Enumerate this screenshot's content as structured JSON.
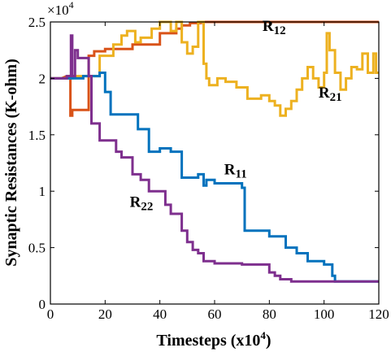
{
  "chart_data": {
    "type": "line",
    "xlabel": "Timesteps (x10",
    "xlabel_exp": "4",
    "xlabel_close": ")",
    "ylabel": "Synaptic Resistances (K-ohm)",
    "y_multiplier": "×10",
    "y_multiplier_exp": "4",
    "xlim": [
      0,
      120
    ],
    "ylim": [
      0,
      2.5
    ],
    "x_ticks": [
      "0",
      "20",
      "40",
      "60",
      "80",
      "100",
      "120"
    ],
    "y_ticks": [
      "0",
      "0.5",
      "1",
      "1.5",
      "2",
      "2.5"
    ],
    "grid": false,
    "series": [
      {
        "name": "R",
        "sub": "12",
        "color": "#d95319",
        "label_at": [
          77.5,
          2.42
        ],
        "points": [
          [
            0,
            2.0
          ],
          [
            4,
            2.0
          ],
          [
            6,
            2.02
          ],
          [
            7.3,
            2.02
          ],
          [
            7.3,
            1.67
          ],
          [
            8,
            1.67
          ],
          [
            8,
            1.72
          ],
          [
            14,
            1.72
          ],
          [
            14,
            2.2
          ],
          [
            16,
            2.2
          ],
          [
            16,
            2.24
          ],
          [
            20,
            2.24
          ],
          [
            20,
            2.26
          ],
          [
            30,
            2.26
          ],
          [
            30,
            2.3
          ],
          [
            40,
            2.3
          ],
          [
            40,
            2.4
          ],
          [
            46,
            2.4
          ],
          [
            46,
            2.44
          ],
          [
            48,
            2.44
          ],
          [
            48,
            2.47
          ],
          [
            51,
            2.47
          ],
          [
            51,
            2.49
          ],
          [
            55,
            2.49
          ],
          [
            55,
            2.5
          ],
          [
            120,
            2.5
          ]
        ]
      },
      {
        "name": "R",
        "sub": "21",
        "color": "#edb120",
        "label_at": [
          98,
          1.83
        ],
        "points": [
          [
            0,
            2.0
          ],
          [
            8,
            2.0
          ],
          [
            8,
            2.02
          ],
          [
            18,
            2.02
          ],
          [
            18,
            2.2
          ],
          [
            20,
            2.2
          ],
          [
            20,
            2.2
          ],
          [
            23,
            2.2
          ],
          [
            23,
            2.3
          ],
          [
            26,
            2.3
          ],
          [
            26,
            2.38
          ],
          [
            28,
            2.38
          ],
          [
            28,
            2.42
          ],
          [
            31,
            2.42
          ],
          [
            31,
            2.32
          ],
          [
            33,
            2.32
          ],
          [
            33,
            2.36
          ],
          [
            37,
            2.36
          ],
          [
            37,
            2.44
          ],
          [
            40,
            2.44
          ],
          [
            40,
            2.5
          ],
          [
            44,
            2.5
          ],
          [
            44,
            2.42
          ],
          [
            46,
            2.42
          ],
          [
            46,
            2.5
          ],
          [
            48,
            2.5
          ],
          [
            48,
            2.32
          ],
          [
            50,
            2.32
          ],
          [
            50,
            2.22
          ],
          [
            52,
            2.22
          ],
          [
            52,
            2.28
          ],
          [
            54,
            2.28
          ],
          [
            54,
            2.5
          ],
          [
            56,
            2.5
          ],
          [
            56,
            2.13
          ],
          [
            57,
            2.13
          ],
          [
            57,
            2.0
          ],
          [
            58,
            2.0
          ],
          [
            58,
            1.94
          ],
          [
            61,
            1.94
          ],
          [
            61,
            2.0
          ],
          [
            64,
            2.0
          ],
          [
            64,
            1.97
          ],
          [
            68,
            1.97
          ],
          [
            68,
            1.92
          ],
          [
            72,
            1.92
          ],
          [
            72,
            1.82
          ],
          [
            77,
            1.82
          ],
          [
            77,
            1.85
          ],
          [
            80,
            1.85
          ],
          [
            80,
            1.8
          ],
          [
            82,
            1.8
          ],
          [
            82,
            1.76
          ],
          [
            84,
            1.76
          ],
          [
            84,
            1.67
          ],
          [
            86,
            1.67
          ],
          [
            86,
            1.73
          ],
          [
            88,
            1.73
          ],
          [
            88,
            1.8
          ],
          [
            90,
            1.8
          ],
          [
            90,
            1.9
          ],
          [
            92,
            1.9
          ],
          [
            92,
            2.0
          ],
          [
            94,
            2.0
          ],
          [
            94,
            2.1
          ],
          [
            96,
            2.1
          ],
          [
            96,
            2.0
          ],
          [
            98,
            2.0
          ],
          [
            98,
            1.92
          ],
          [
            100,
            1.92
          ],
          [
            100,
            2.05
          ],
          [
            101,
            2.05
          ],
          [
            101,
            2.4
          ],
          [
            102,
            2.4
          ],
          [
            102,
            2.25
          ],
          [
            104,
            2.25
          ],
          [
            104,
            2.05
          ],
          [
            106,
            2.05
          ],
          [
            106,
            1.9
          ],
          [
            108,
            1.9
          ],
          [
            108,
            2.0
          ],
          [
            110,
            2.0
          ],
          [
            110,
            2.1
          ],
          [
            112,
            2.1
          ],
          [
            112,
            2.08
          ],
          [
            114,
            2.08
          ],
          [
            114,
            2.22
          ],
          [
            116,
            2.22
          ],
          [
            116,
            2.05
          ],
          [
            118,
            2.05
          ],
          [
            118,
            2.22
          ],
          [
            119,
            2.22
          ],
          [
            119,
            2.05
          ],
          [
            120,
            2.05
          ]
        ]
      },
      {
        "name": "R",
        "sub": "11",
        "color": "#0072bd",
        "label_at": [
          63.5,
          1.15
        ],
        "points": [
          [
            0,
            2.0
          ],
          [
            12,
            2.0
          ],
          [
            12,
            2.02
          ],
          [
            18,
            2.02
          ],
          [
            18,
            2.05
          ],
          [
            20,
            2.05
          ],
          [
            20,
            1.88
          ],
          [
            22,
            1.88
          ],
          [
            22,
            1.68
          ],
          [
            32,
            1.68
          ],
          [
            32,
            1.55
          ],
          [
            34,
            1.55
          ],
          [
            34,
            1.55
          ],
          [
            36,
            1.55
          ],
          [
            36,
            1.35
          ],
          [
            40,
            1.35
          ],
          [
            40,
            1.38
          ],
          [
            44,
            1.38
          ],
          [
            44,
            1.35
          ],
          [
            48,
            1.35
          ],
          [
            48,
            1.12
          ],
          [
            54,
            1.12
          ],
          [
            54,
            1.15
          ],
          [
            56,
            1.15
          ],
          [
            56,
            1.05
          ],
          [
            57,
            1.05
          ],
          [
            57,
            1.1
          ],
          [
            60,
            1.1
          ],
          [
            60,
            1.07
          ],
          [
            70,
            1.07
          ],
          [
            70,
            1.03
          ],
          [
            71,
            1.03
          ],
          [
            71,
            0.65
          ],
          [
            80,
            0.65
          ],
          [
            80,
            0.6
          ],
          [
            86,
            0.6
          ],
          [
            86,
            0.5
          ],
          [
            90,
            0.5
          ],
          [
            90,
            0.45
          ],
          [
            94,
            0.45
          ],
          [
            94,
            0.38
          ],
          [
            100,
            0.38
          ],
          [
            100,
            0.35
          ],
          [
            103,
            0.35
          ],
          [
            103,
            0.25
          ],
          [
            104,
            0.25
          ],
          [
            104,
            0.2
          ],
          [
            120,
            0.2
          ]
        ]
      },
      {
        "name": "R",
        "sub": "22",
        "color": "#7e2f8e",
        "label_at": [
          29,
          0.86
        ],
        "points": [
          [
            0,
            2.0
          ],
          [
            6,
            2.0
          ],
          [
            6,
            2.02
          ],
          [
            7.5,
            2.02
          ],
          [
            7.5,
            2.38
          ],
          [
            8,
            2.38
          ],
          [
            8,
            2.02
          ],
          [
            9,
            2.02
          ],
          [
            9,
            2.25
          ],
          [
            10,
            2.25
          ],
          [
            10,
            2.18
          ],
          [
            14,
            2.18
          ],
          [
            14,
            2.02
          ],
          [
            15,
            2.02
          ],
          [
            15,
            1.6
          ],
          [
            18,
            1.6
          ],
          [
            18,
            1.45
          ],
          [
            24,
            1.45
          ],
          [
            24,
            1.35
          ],
          [
            26,
            1.35
          ],
          [
            26,
            1.3
          ],
          [
            30,
            1.3
          ],
          [
            30,
            1.15
          ],
          [
            33,
            1.15
          ],
          [
            33,
            1.1
          ],
          [
            36,
            1.1
          ],
          [
            36,
            1.0
          ],
          [
            42,
            1.0
          ],
          [
            42,
            0.88
          ],
          [
            44,
            0.88
          ],
          [
            44,
            0.8
          ],
          [
            48,
            0.8
          ],
          [
            48,
            0.65
          ],
          [
            50,
            0.65
          ],
          [
            50,
            0.55
          ],
          [
            52,
            0.55
          ],
          [
            52,
            0.48
          ],
          [
            54,
            0.48
          ],
          [
            54,
            0.45
          ],
          [
            56,
            0.45
          ],
          [
            56,
            0.38
          ],
          [
            60,
            0.38
          ],
          [
            60,
            0.36
          ],
          [
            70,
            0.36
          ],
          [
            70,
            0.35
          ],
          [
            80,
            0.35
          ],
          [
            80,
            0.28
          ],
          [
            82,
            0.28
          ],
          [
            82,
            0.25
          ],
          [
            84,
            0.25
          ],
          [
            84,
            0.22
          ],
          [
            88,
            0.22
          ],
          [
            88,
            0.2
          ],
          [
            120,
            0.2
          ]
        ]
      }
    ]
  }
}
